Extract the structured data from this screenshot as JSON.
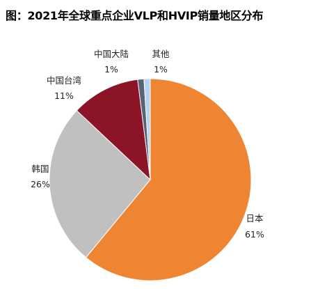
{
  "title": "图：2021年全球重点企业VLP和HVIP销量地区分布",
  "chart_data": {
    "type": "pie",
    "title": "图：2021年全球重点企业VLP和HVIP销量地区分布",
    "slices": [
      {
        "name": "日本",
        "value": 61,
        "label": "61%",
        "color": "#ED8533"
      },
      {
        "name": "韩国",
        "value": 26,
        "label": "26%",
        "color": "#C0C0C0"
      },
      {
        "name": "中国台湾",
        "value": 11,
        "label": "11%",
        "color": "#8B1426"
      },
      {
        "name": "中国大陆",
        "value": 1,
        "label": "1%",
        "color": "#5A6275"
      },
      {
        "name": "其他",
        "value": 1,
        "label": "1%",
        "color": "#B7D3EE"
      }
    ],
    "legend": "none"
  }
}
